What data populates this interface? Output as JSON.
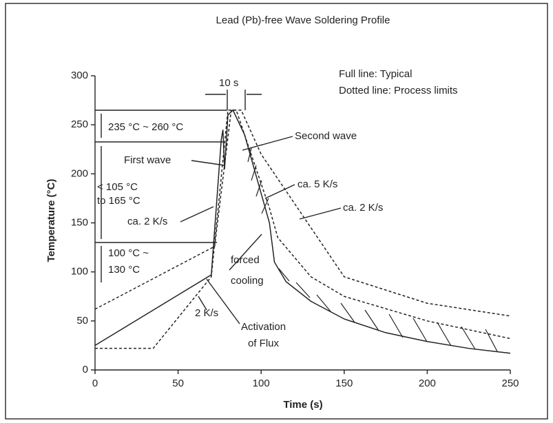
{
  "chart_data": {
    "type": "line",
    "title": "Lead (Pb)-free Wave Soldering Profile",
    "x_label": "Time (s)",
    "y_label": "Temperature (°C)",
    "xlim": [
      0,
      250
    ],
    "xticks": [
      0,
      50,
      100,
      150,
      200,
      250
    ],
    "ylim": [
      0,
      300
    ],
    "yticks": [
      0,
      50,
      100,
      150,
      200,
      250,
      300
    ],
    "series": [
      {
        "style": "solid",
        "color": "#222222",
        "x": [
          0,
          70,
          76,
          77,
          78,
          80,
          83,
          90,
          100,
          105,
          108,
          115,
          130,
          150,
          175,
          200,
          225,
          250
        ],
        "values": [
          25,
          97,
          235,
          245,
          205,
          260,
          265,
          240,
          180,
          150,
          110,
          90,
          70,
          52,
          38,
          29,
          22,
          17
        ]
      },
      {
        "style": "dotted",
        "color": "#222222",
        "x": [
          0,
          72,
          82,
          88,
          100,
          120,
          150,
          200,
          250
        ],
        "values": [
          62,
          126,
          265,
          265,
          220,
          170,
          95,
          68,
          55
        ]
      },
      {
        "style": "dotted",
        "color": "#222222",
        "x": [
          0,
          35,
          70,
          80,
          85,
          95,
          105,
          110,
          130,
          150,
          200,
          250
        ],
        "values": [
          22,
          22,
          95,
          265,
          265,
          215,
          165,
          135,
          95,
          75,
          50,
          32
        ]
      }
    ],
    "annotations": [
      "Full line: Typical",
      "Dotted line: Process limits",
      "10 s",
      "235 °C ~ 260 °C",
      "< 105 °C",
      "to 165 °C",
      "First wave",
      "Second wave",
      "ca. 5 K/s",
      "ca. 2 K/s",
      "ca. 2 K/s",
      "100 °C ~",
      "130 °C",
      "forced",
      "cooling",
      "2 K/s",
      "Activation",
      "of Flux"
    ]
  }
}
